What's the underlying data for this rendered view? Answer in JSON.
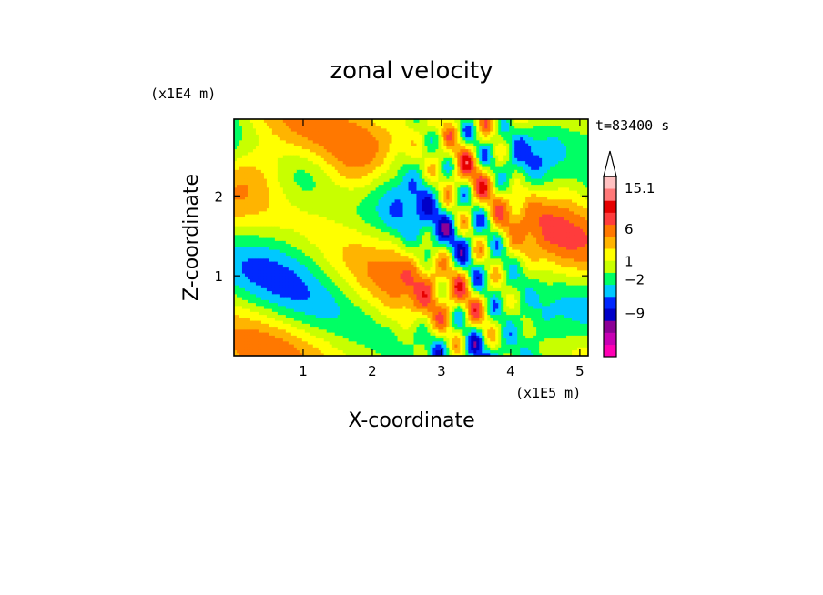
{
  "chart_data": {
    "type": "heatmap",
    "title": "zonal velocity",
    "xlabel": "X-coordinate",
    "ylabel": "Z-coordinate",
    "x_scale_note": "(x1E5 m)",
    "y_scale_note": "(x1E4 m)",
    "time_label": "t=83400 s",
    "xlim": [
      0,
      5.12
    ],
    "ylim": [
      0,
      2.96
    ],
    "xticks": [
      "1",
      "2",
      "3",
      "4",
      "5"
    ],
    "yticks": [
      "1",
      "2"
    ],
    "colorbar": {
      "labels": [
        "15.1",
        "6",
        "1",
        "-2",
        "-9"
      ],
      "colors": [
        "#ff00b4",
        "#c800b4",
        "#8c0096",
        "#0000c8",
        "#0028ff",
        "#00c8ff",
        "#00ff64",
        "#c8ff00",
        "#ffff00",
        "#ffb400",
        "#ff7800",
        "#ff3c3c",
        "#e60000",
        "#ff7878",
        "#ffc0c0"
      ]
    }
  }
}
